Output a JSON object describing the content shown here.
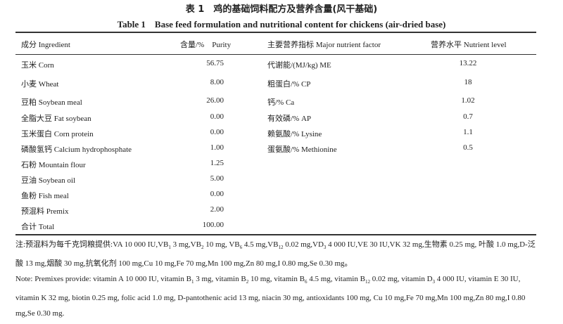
{
  "title_cn": "表 1　鸡的基础饲料配方及营养含量(风干基础)",
  "title_en": "Table 1　Base feed formulation and nutritional content for chickens (air-dried base)",
  "headers": [
    "成分 Ingredient",
    "含量/%　Purity",
    "主要营养指标 Major nutrient factor",
    "营养水平 Nutrient level"
  ],
  "rows": [
    {
      "ingredient": "玉米 Corn",
      "purity": "56.75",
      "nutrient": "代谢能/(MJ/kg) ME",
      "level": "13.22"
    },
    {
      "ingredient": "小麦 Wheat",
      "purity": "8.00",
      "nutrient": "粗蛋白/% CP",
      "level": "18"
    },
    {
      "ingredient": "豆粕 Soybean meal",
      "purity": "26.00",
      "nutrient": "钙/% Ca",
      "level": "1.02"
    },
    {
      "ingredient": "全脂大豆 Fat soybean",
      "purity": "0.00",
      "nutrient": "有效磷/% AP",
      "level": "0.7"
    },
    {
      "ingredient": "玉米蛋白 Corn protein",
      "purity": "0.00",
      "nutrient": "赖氨酸/% Lysine",
      "level": "1.1"
    },
    {
      "ingredient": "磷酸氢钙 Calcium hydrophosphate",
      "purity": "1.00",
      "nutrient": "蛋氨酸/% Methionine",
      "level": "0.5"
    },
    {
      "ingredient": "石粉 Mountain flour",
      "purity": "1.25",
      "nutrient": "",
      "level": ""
    },
    {
      "ingredient": "豆油 Soybean oil",
      "purity": "5.00",
      "nutrient": "",
      "level": ""
    },
    {
      "ingredient": "鱼粉 Fish meal",
      "purity": "0.00",
      "nutrient": "",
      "level": ""
    },
    {
      "ingredient": "预混料 Premix",
      "purity": "2.00",
      "nutrient": "",
      "level": ""
    }
  ],
  "total": {
    "ingredient": "合计 Total",
    "purity": "100.00"
  },
  "note_cn": [
    [
      "注:预混料为每千克饲粮提供:VA 10 000 IU,VB",
      ""
    ],
    [
      "1",
      "sub"
    ],
    [
      " 3 mg,VB",
      ""
    ],
    [
      "2",
      "sub"
    ],
    [
      " 10 mg, VB",
      ""
    ],
    [
      "6",
      "sub"
    ],
    [
      " 4.5 mg,VB",
      ""
    ],
    [
      "12",
      "sub"
    ],
    [
      " 0.02 mg,VD",
      ""
    ],
    [
      "3",
      "sub"
    ],
    [
      " 4 000 IU,VE 30 IU,VK 32 mg,生物素 0.25 mg, 叶酸 1.0 mg,D-泛酸 13 mg,烟酸 30 mg,抗氧化剂 100 mg,Cu 10 mg,Fe 70 mg,Mn 100 mg,Zn 80 mg,I 0.80 mg,Se 0.30 mg。",
      ""
    ]
  ],
  "note_en": [
    [
      "Note: Premixes provide: vitamin A 10 000 IU, vitamin B",
      ""
    ],
    [
      "1",
      "sub"
    ],
    [
      " 3 mg, vitamin B",
      ""
    ],
    [
      "2",
      "sub"
    ],
    [
      " 10 mg, vitamin B",
      ""
    ],
    [
      "6",
      "sub"
    ],
    [
      " 4.5 mg, vitamin B",
      ""
    ],
    [
      "12",
      "sub"
    ],
    [
      " 0.02 mg, vitamin D",
      ""
    ],
    [
      "3",
      "sub"
    ],
    [
      " 4 000 IU, vitamin E 30 IU, vitamin K 32 mg, biotin 0.25 mg, folic acid 1.0 mg, D-pantothenic acid 13 mg, niacin 30 mg, antioxidants 100 mg, Cu 10 mg,Fe 70 mg,Mn 100 mg,Zn 80 mg,I 0.80 mg,Se 0.30 mg.",
      ""
    ]
  ]
}
